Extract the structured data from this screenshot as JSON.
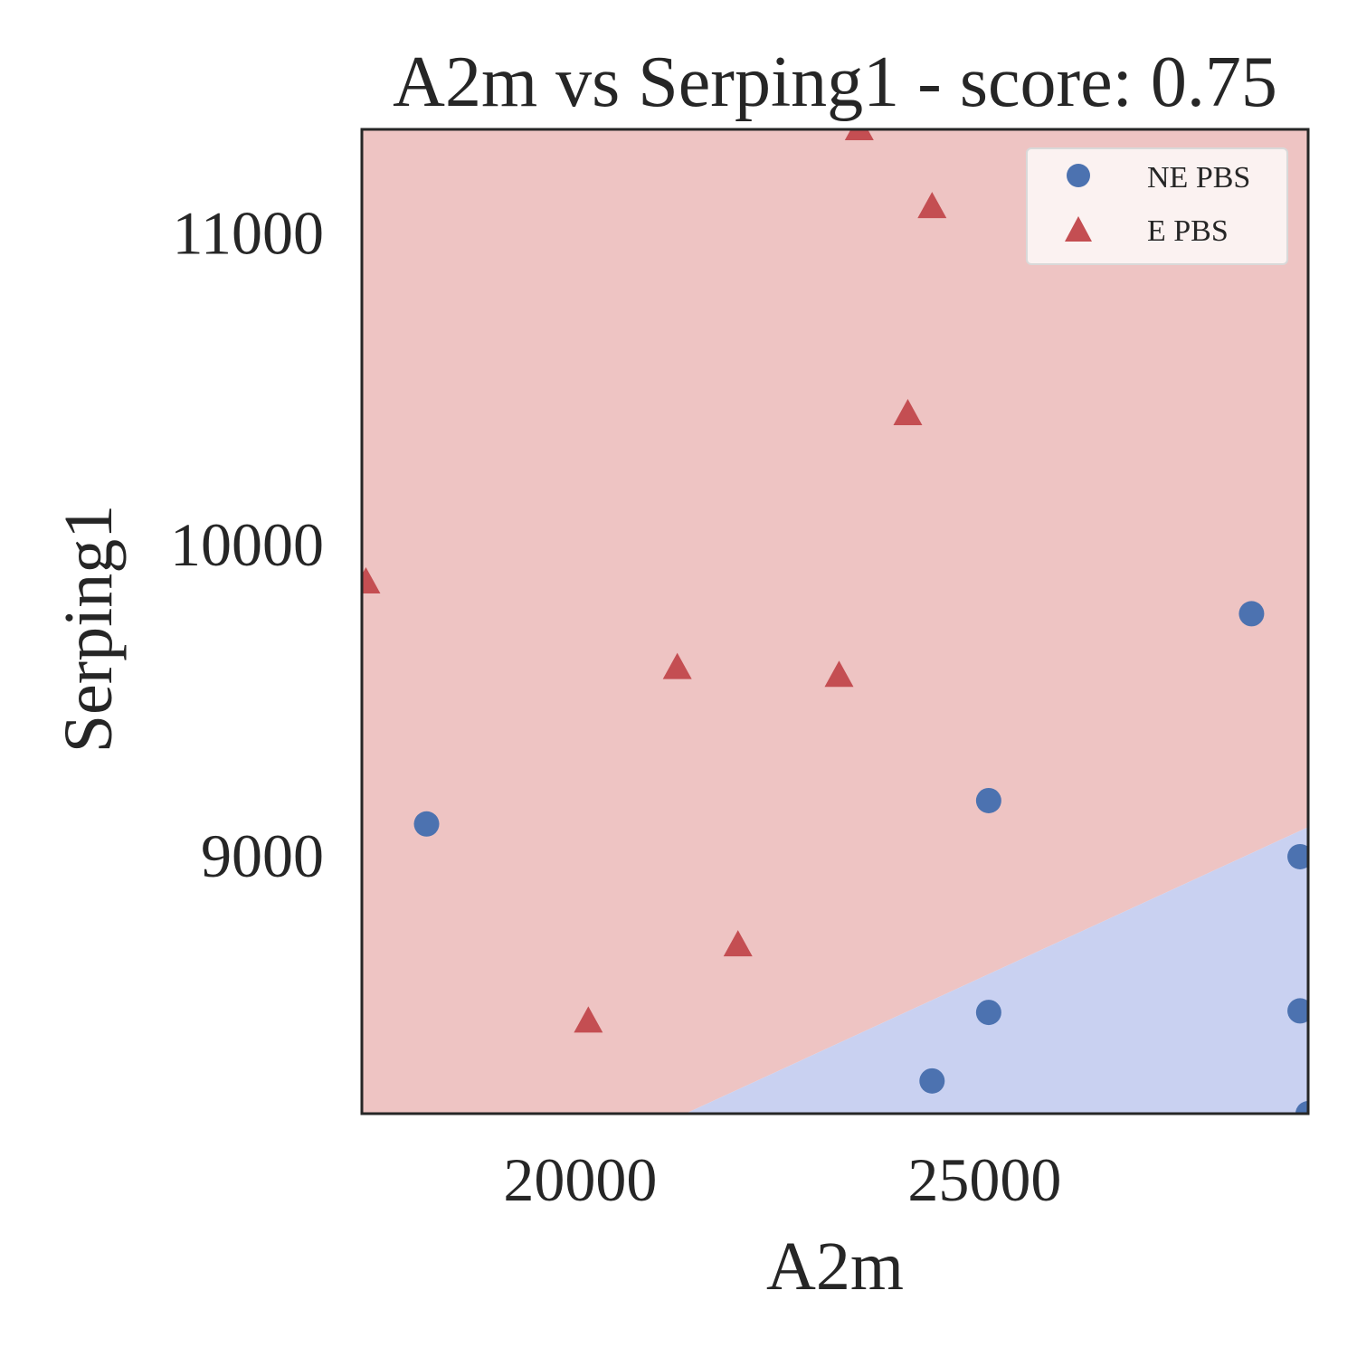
{
  "chart_data": {
    "type": "scatter",
    "title": "A2m vs Serping1 - score: 0.75",
    "xlabel": "A2m",
    "ylabel": "Serping1",
    "xlim": [
      17300,
      29000
    ],
    "ylim": [
      8170,
      11330
    ],
    "xticks": [
      20000,
      25000
    ],
    "xtick_labels": [
      "20000",
      "25000"
    ],
    "yticks": [
      9000,
      10000,
      11000
    ],
    "ytick_labels": [
      "9000",
      "10000",
      "11000"
    ],
    "grid": false,
    "legend_position": "top-right",
    "decision_regions": {
      "upper_region_color": "#eec4c3",
      "lower_region_color": "#c9d1f1",
      "boundary_points": [
        [
          21300,
          8170
        ],
        [
          29000,
          9090
        ]
      ]
    },
    "series": [
      {
        "name": "NE PBS",
        "marker": "circle",
        "color": "#4c72b0",
        "points": [
          [
            18100,
            9100
          ],
          [
            25050,
            9175
          ],
          [
            28300,
            9775
          ],
          [
            28900,
            8995
          ],
          [
            25050,
            8495
          ],
          [
            28900,
            8500
          ],
          [
            24350,
            8275
          ],
          [
            29000,
            8170
          ]
        ]
      },
      {
        "name": "E PBS",
        "marker": "triangle",
        "color": "#c44e52",
        "points": [
          [
            23450,
            11330
          ],
          [
            24350,
            11080
          ],
          [
            24050,
            10415
          ],
          [
            17350,
            9875
          ],
          [
            21200,
            9600
          ],
          [
            23200,
            9575
          ],
          [
            21950,
            8710
          ],
          [
            20100,
            8465
          ]
        ]
      }
    ]
  }
}
